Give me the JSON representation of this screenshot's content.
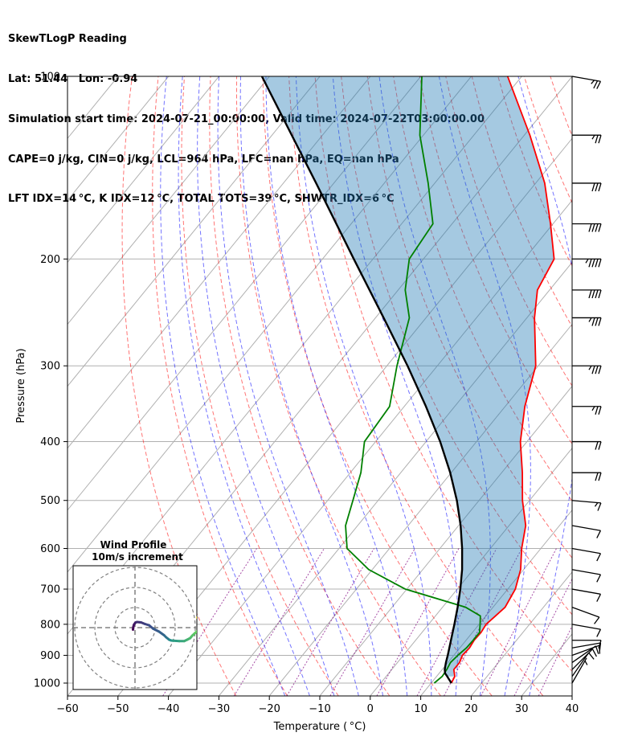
{
  "header": {
    "line1": "SkewTLogP Reading",
    "line2": "Lat: 51.44   Lon: -0.94",
    "line3": "Simulation start time: 2024-07-21_00:00:00, Valid time: 2024-07-22T03:00:00.00",
    "line4": "CAPE=0 j/kg, CIN=0 j/kg, LCL=964 hPa, LFC=nan hPa, EQ=nan hPa",
    "line5": "LFT IDX=14 °C, K IDX=12 °C, TOTAL TOTS=39 °C, SHWTR_IDX=6 °C"
  },
  "chart_data": {
    "type": "line",
    "xlabel": "Temperature ( °C)",
    "ylabel": "Pressure (hPa)",
    "xlim": [
      -60,
      40
    ],
    "ylim": [
      1050,
      100
    ],
    "y_scale": "log",
    "x_ticks": [
      "−60",
      "−50",
      "−40",
      "−30",
      "−20",
      "−10",
      "0",
      "10",
      "20",
      "30",
      "40"
    ],
    "y_ticks": [
      "100",
      "200",
      "300",
      "400",
      "500",
      "600",
      "700",
      "800",
      "900",
      "1000"
    ],
    "grid": true,
    "series": [
      {
        "key": "temperature",
        "color": "#ff0000",
        "pressure": [
          1000,
          975,
          950,
          925,
          900,
          875,
          850,
          825,
          800,
          775,
          750,
          700,
          650,
          600,
          550,
          500,
          450,
          400,
          350,
          300,
          250,
          225,
          200,
          175,
          150,
          125,
          100
        ],
        "values": [
          14.0,
          13.6,
          12.3,
          12.3,
          11.7,
          11.9,
          11.6,
          11.7,
          11.4,
          11.9,
          12.4,
          11.5,
          9.4,
          6.2,
          3.3,
          -1.4,
          -5.9,
          -11.3,
          -16.1,
          -20.5,
          -28.5,
          -32.4,
          -34.1,
          -40.5,
          -48.2,
          -58.9,
          -72.8
        ]
      },
      {
        "key": "dewpoint",
        "color": "#008000",
        "pressure": [
          1000,
          975,
          950,
          925,
          900,
          875,
          850,
          825,
          800,
          775,
          750,
          700,
          650,
          600,
          550,
          500,
          450,
          400,
          350,
          300,
          250,
          225,
          200,
          175,
          150,
          125,
          100
        ],
        "values": [
          10.6,
          11.1,
          10.9,
          10.5,
          10.8,
          11.3,
          11.4,
          11.4,
          10.2,
          8.9,
          4.6,
          -10.3,
          -20.7,
          -28.4,
          -32.4,
          -35.0,
          -37.9,
          -42.2,
          -42.9,
          -48.0,
          -53.3,
          -58.6,
          -62.8,
          -63.8,
          -71.3,
          -80.7,
          -89.8
        ]
      },
      {
        "key": "parcel",
        "color": "#000000",
        "pressure": [
          1000,
          975,
          964,
          950,
          925,
          900,
          850,
          800,
          750,
          700,
          650,
          600,
          550,
          500,
          450,
          400,
          350,
          300,
          250,
          200,
          150,
          100
        ],
        "values": [
          14.0,
          12.1,
          11.2,
          10.5,
          9.6,
          8.8,
          7.0,
          5.1,
          3.0,
          0.6,
          -2.2,
          -5.6,
          -9.6,
          -14.4,
          -20.2,
          -27.2,
          -35.7,
          -45.9,
          -58.4,
          -73.8,
          -93.5,
          -121.5
        ]
      }
    ],
    "wind_barbs": {
      "pressure": [
        1000,
        975,
        950,
        925,
        900,
        875,
        850,
        800,
        750,
        700,
        650,
        600,
        550,
        500,
        450,
        400,
        350,
        300,
        250,
        225,
        200,
        175,
        150,
        125,
        100
      ],
      "speed_kt": [
        5,
        10,
        10,
        10,
        10,
        10,
        10,
        10,
        10,
        10,
        10,
        10,
        10,
        15,
        20,
        20,
        25,
        35,
        35,
        40,
        45,
        40,
        30,
        25,
        25
      ],
      "direction_deg": [
        30,
        35,
        45,
        55,
        70,
        80,
        90,
        100,
        110,
        100,
        100,
        100,
        100,
        95,
        90,
        90,
        90,
        90,
        90,
        90,
        90,
        90,
        90,
        90,
        100
      ]
    },
    "hodograph": {
      "title": "Wind Profile",
      "subtitle": "10m/s increment",
      "colormap": "viridis",
      "u": [
        -1.0,
        -0.8,
        -0.5,
        0.2,
        1.0,
        3.0,
        5.0,
        7.0,
        9.0,
        12.0,
        14.5,
        15.5,
        16.5,
        17.0,
        17.5,
        18.0,
        19.0,
        22.0,
        24.5,
        26.0,
        27.5,
        28.5,
        30.0,
        31.5,
        32.5,
        33.0,
        33.5,
        34.0,
        33.5,
        32.5,
        31.0
      ],
      "v": [
        -1.0,
        0.5,
        1.5,
        2.5,
        2.8,
        2.6,
        1.8,
        1.2,
        -0.5,
        -2.0,
        -3.8,
        -4.8,
        -5.6,
        -6.0,
        -6.2,
        -6.4,
        -6.5,
        -6.7,
        -6.7,
        -6.0,
        -5.2,
        -4.0,
        -2.6,
        -1.3,
        -0.5,
        0.5,
        1.0,
        2.0,
        3.5,
        4.6,
        5.0
      ]
    }
  }
}
